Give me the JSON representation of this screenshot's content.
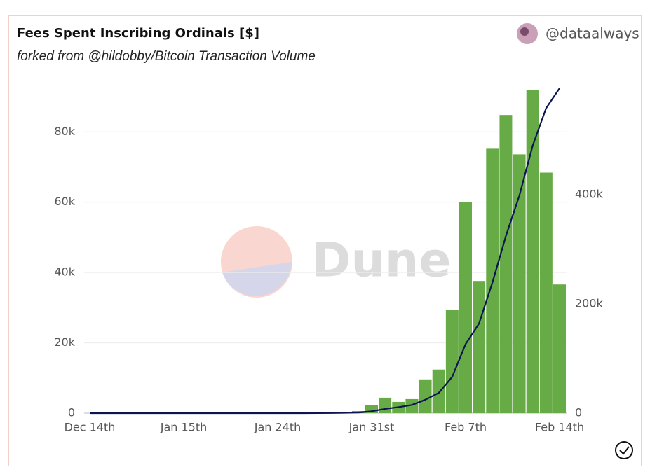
{
  "header": {
    "title": "Fees Spent Inscribing Ordinals [$]",
    "subtitle": "forked from @hildobby/Bitcoin Transaction Volume",
    "user": "@dataalways",
    "watermark": "Dune"
  },
  "chart_data": {
    "type": "bar-line",
    "categories": [
      "Dec 14th",
      null,
      null,
      null,
      null,
      null,
      null,
      "Jan 15th",
      null,
      null,
      null,
      null,
      null,
      null,
      "Jan 24th",
      null,
      null,
      null,
      null,
      null,
      null,
      "Jan 31st",
      null,
      null,
      null,
      null,
      null,
      null,
      "Feb 7th",
      null,
      null,
      null,
      null,
      null,
      null,
      "Feb 14th"
    ],
    "series": [
      {
        "type": "bar",
        "color": "#67ab47",
        "values": [
          0,
          0,
          0,
          0,
          0,
          0,
          0,
          0,
          0,
          0,
          0,
          0,
          0,
          0,
          0,
          0,
          0,
          100,
          150,
          300,
          600,
          2200,
          4400,
          3200,
          4000,
          9600,
          12400,
          29300,
          60100,
          37600,
          75200,
          84800,
          73600,
          92000,
          68400,
          36600
        ]
      },
      {
        "type": "line",
        "axis": "y2",
        "color": "#0d1452",
        "values": [
          0,
          0,
          0,
          0,
          0,
          0,
          0,
          0,
          0,
          0,
          0,
          0,
          0,
          0,
          0,
          0,
          0,
          100,
          250,
          550,
          1150,
          3400,
          7800,
          11000,
          15000,
          24600,
          37000,
          66300,
          126400,
          164000,
          239200,
          324000,
          397600,
          489600,
          558000,
          594600
        ]
      }
    ],
    "ylim": [
      0,
      92000
    ],
    "yticks": [
      0,
      {
        "value": 20000,
        "label": "20k"
      },
      {
        "value": 40000,
        "label": "40k"
      },
      {
        "value": 60000,
        "label": "60k"
      },
      {
        "value": 80000,
        "label": "80k"
      }
    ],
    "y2lim": [
      0,
      592000
    ],
    "y2ticks": [
      0,
      {
        "value": 200000,
        "label": "200k"
      },
      {
        "value": 400000,
        "label": "400k"
      }
    ],
    "grid": true
  }
}
